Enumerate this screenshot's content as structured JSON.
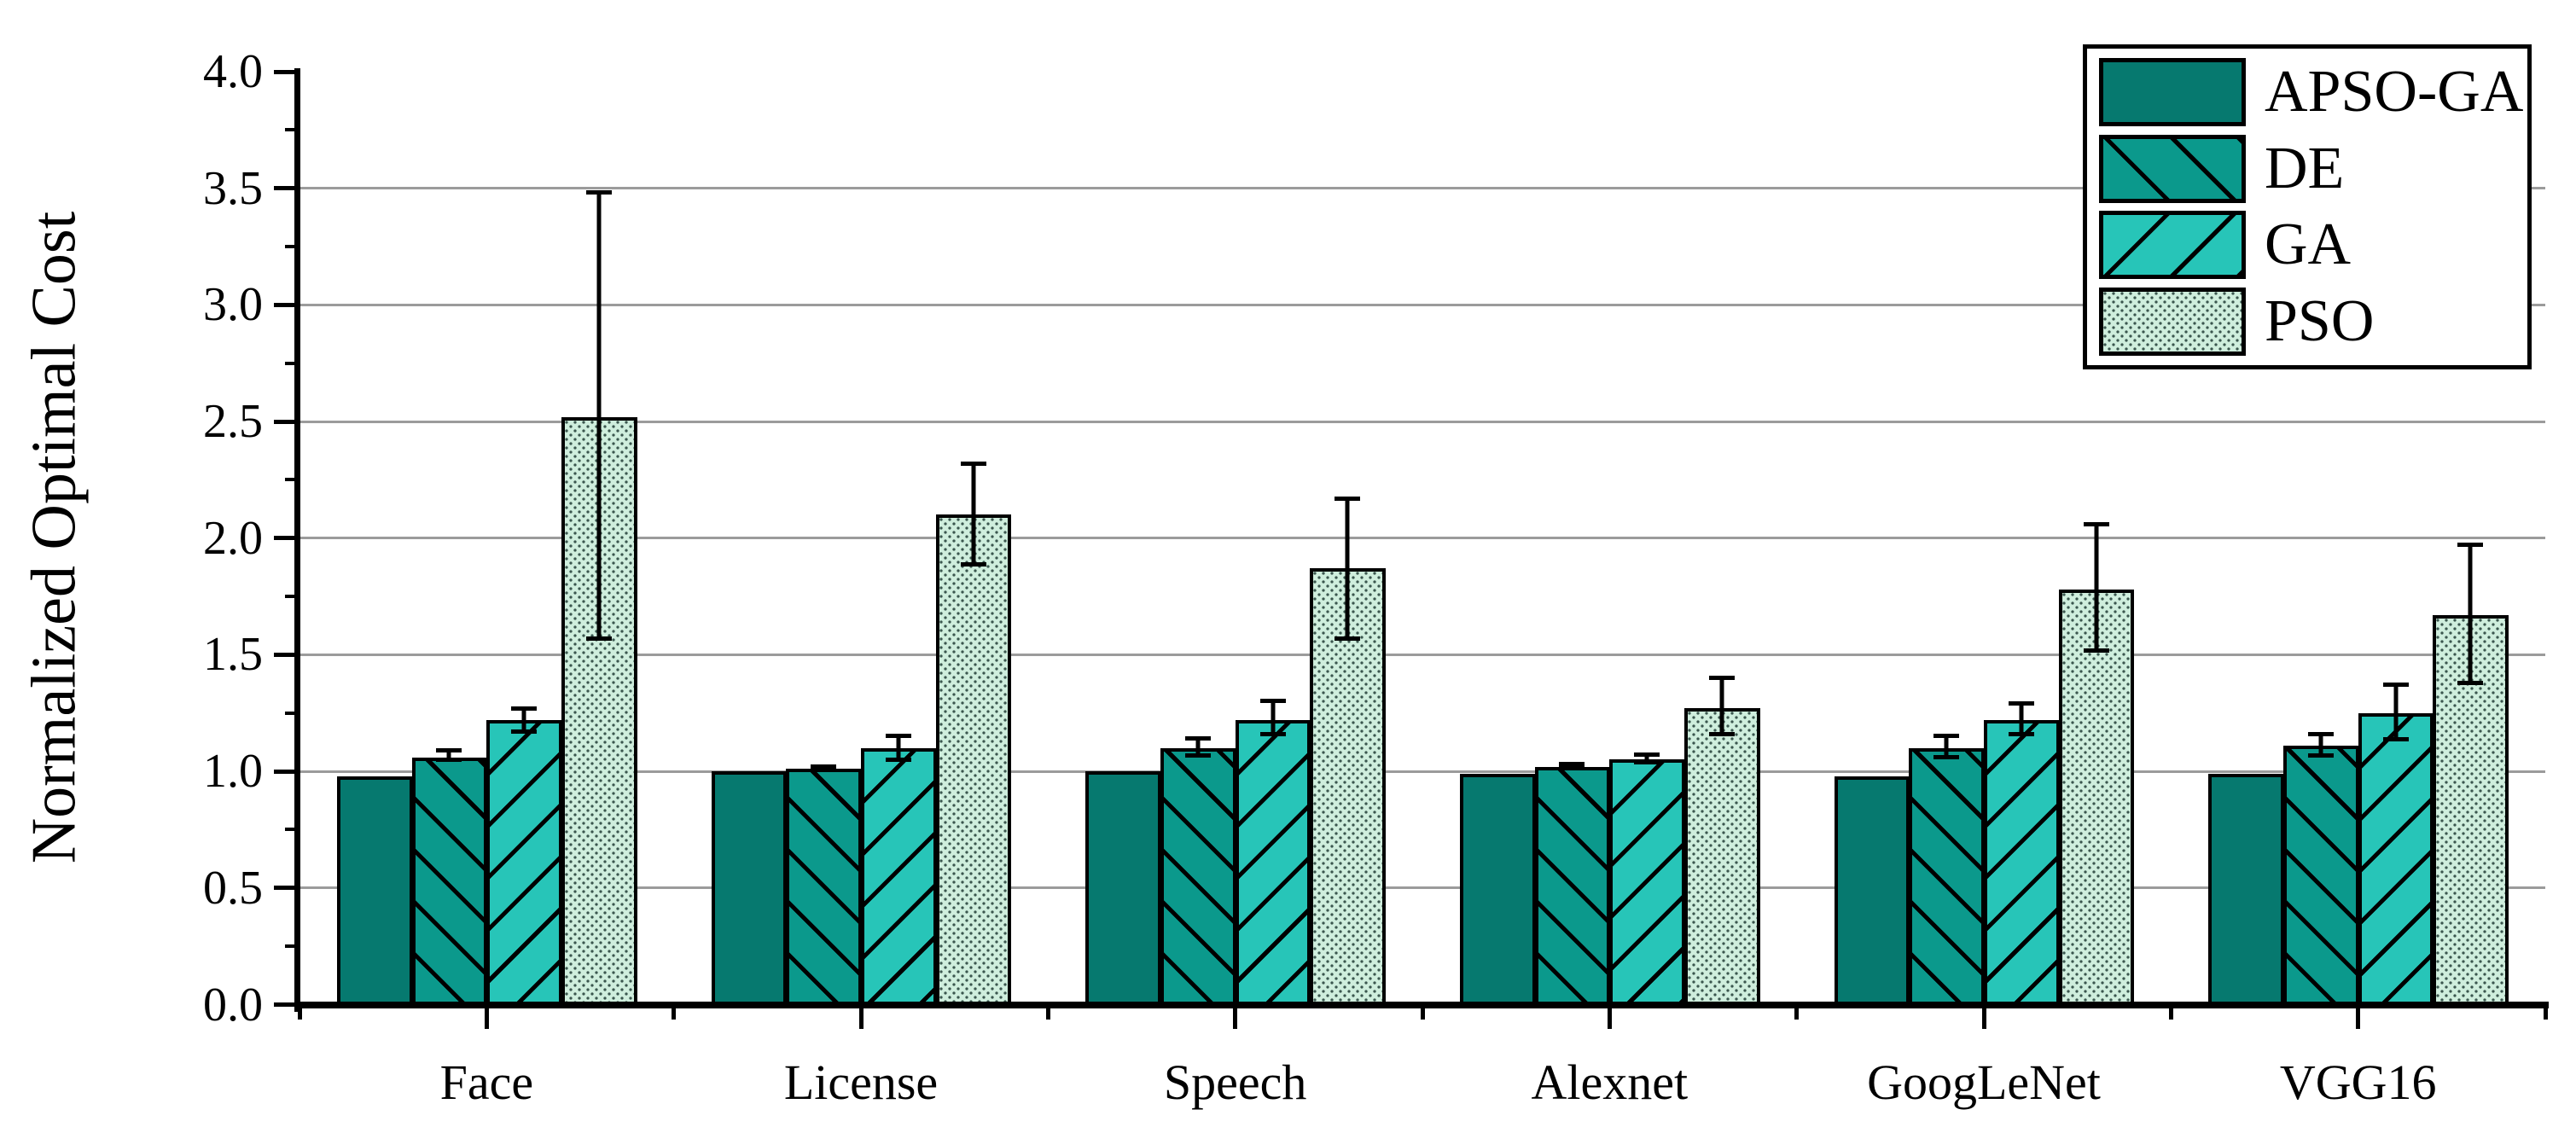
{
  "colors": {
    "background": "#ffffff",
    "axis": "#000000",
    "gridline": "#9b9b9b",
    "error_bar": "#000000",
    "pso_dot": "#3a564e"
  },
  "chart_data": {
    "type": "bar",
    "title": "",
    "xlabel": "",
    "ylabel": "Normalized Optimal Cost",
    "ylim": [
      0,
      4
    ],
    "ytick_step": 0.5,
    "ytick_minor_step": 0.25,
    "ytick_labels": [
      "0.0",
      "0.5",
      "1.0",
      "1.5",
      "2.0",
      "2.5",
      "3.0",
      "3.5",
      "4.0"
    ],
    "grid": "horizontal-major-only",
    "legend_position": "top-right",
    "categories": [
      "Face",
      "License",
      "Speech",
      "Alexnet",
      "GoogLeNet",
      "VGG16"
    ],
    "series": [
      {
        "name": "APSO-GA",
        "color": "#06796f",
        "hatch": "none",
        "values": [
          0.98,
          1.0,
          1.0,
          0.99,
          0.98,
          0.99
        ],
        "err_lo": null,
        "err_hi": null
      },
      {
        "name": "DE",
        "color": "#0b998c",
        "hatch": "backslash",
        "values": [
          1.06,
          1.01,
          1.1,
          1.02,
          1.1,
          1.11
        ],
        "err_lo": [
          1.04,
          1.0,
          1.06,
          1.01,
          1.05,
          1.06
        ],
        "err_hi": [
          1.1,
          1.03,
          1.15,
          1.04,
          1.16,
          1.17
        ]
      },
      {
        "name": "GA",
        "color": "#27c5b8",
        "hatch": "slash",
        "values": [
          1.22,
          1.1,
          1.22,
          1.05,
          1.22,
          1.25
        ],
        "err_lo": [
          1.16,
          1.04,
          1.15,
          1.03,
          1.15,
          1.13
        ],
        "err_hi": [
          1.28,
          1.16,
          1.31,
          1.08,
          1.3,
          1.38
        ]
      },
      {
        "name": "PSO",
        "color": "#cfeedd",
        "hatch": "dots",
        "values": [
          2.52,
          2.1,
          1.87,
          1.27,
          1.78,
          1.67
        ],
        "err_lo": [
          1.56,
          1.88,
          1.56,
          1.15,
          1.51,
          1.37
        ],
        "err_hi": [
          3.49,
          2.33,
          2.18,
          1.41,
          2.07,
          1.98
        ]
      }
    ]
  }
}
